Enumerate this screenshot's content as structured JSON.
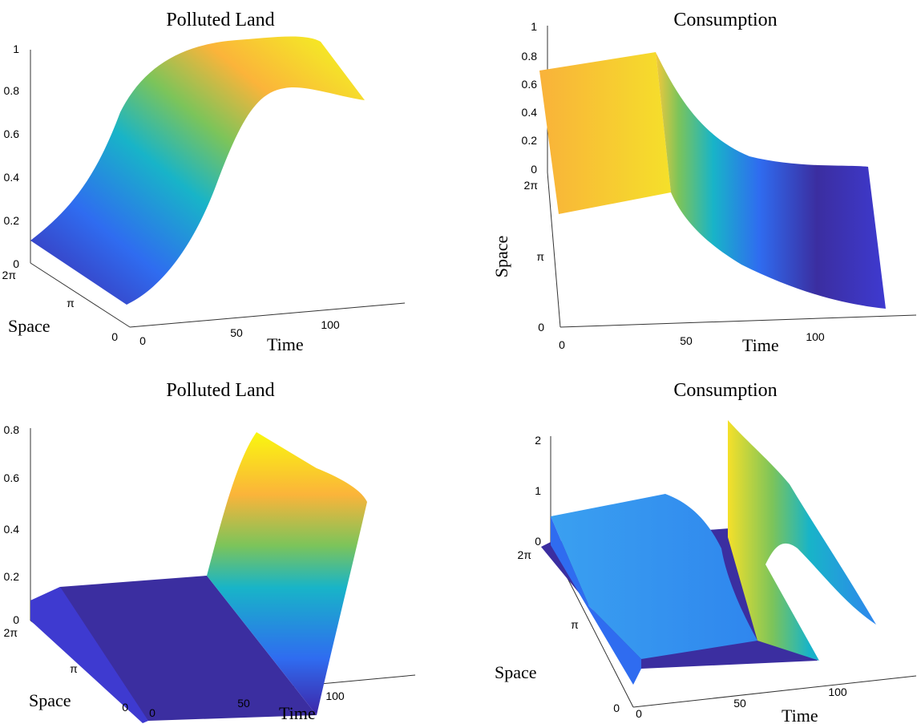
{
  "chart_data": [
    {
      "type": "surface",
      "title": "Polluted Land",
      "xlabel": "Time",
      "ylabel": "Space",
      "zlabel": "",
      "x_ticks": [
        "0",
        "50",
        "100"
      ],
      "y_ticks": [
        "0",
        "π",
        "2π"
      ],
      "z_ticks": [
        "0",
        "0.2",
        "0.4",
        "0.6",
        "0.8",
        "1"
      ],
      "xlim": [
        0,
        140
      ],
      "zlim": [
        0,
        1
      ],
      "profile": {
        "time": [
          0,
          20,
          40,
          60,
          80,
          100,
          120,
          140
        ],
        "value": [
          0.1,
          0.2,
          0.45,
          0.75,
          0.93,
          0.98,
          0.95,
          0.9
        ]
      },
      "colormap": "parula"
    },
    {
      "type": "surface",
      "title": "Consumption",
      "xlabel": "Time",
      "ylabel": "Space",
      "zlabel": "",
      "x_ticks": [
        "0",
        "50",
        "100"
      ],
      "y_ticks": [
        "0",
        "π",
        "2π"
      ],
      "z_ticks": [
        "0",
        "0.2",
        "0.4",
        "0.6",
        "0.8",
        "1"
      ],
      "xlim": [
        0,
        140
      ],
      "zlim": [
        0,
        1
      ],
      "profile": {
        "time": [
          0,
          45,
          60,
          80,
          100,
          140
        ],
        "value": [
          0.68,
          0.68,
          0.45,
          0.3,
          0.2,
          0.1
        ]
      },
      "colormap": "parula"
    },
    {
      "type": "surface",
      "title": "Polluted Land",
      "xlabel": "Time",
      "ylabel": "Space",
      "zlabel": "",
      "x_ticks": [
        "0",
        "50",
        "100"
      ],
      "y_ticks": [
        "0",
        "π",
        "2π"
      ],
      "z_ticks": [
        "0",
        "0.2",
        "0.4",
        "0.6",
        "0.8"
      ],
      "xlim": [
        0,
        140
      ],
      "zlim": [
        0,
        0.8
      ],
      "profile": {
        "time": [
          0,
          10,
          70,
          80,
          100,
          120,
          140
        ],
        "value": [
          0.1,
          0.0,
          0.0,
          0.05,
          0.4,
          0.75,
          0.7
        ]
      },
      "colormap": "parula"
    },
    {
      "type": "surface",
      "title": "Consumption",
      "xlabel": "Time",
      "ylabel": "Space",
      "zlabel": "",
      "x_ticks": [
        "0",
        "50",
        "100"
      ],
      "y_ticks": [
        "0",
        "π",
        "2π"
      ],
      "z_ticks": [
        "0",
        "1",
        "2"
      ],
      "xlim": [
        0,
        140
      ],
      "zlim": [
        0,
        2
      ],
      "profile": {
        "time": [
          0,
          10,
          50,
          60,
          70,
          90,
          100,
          140
        ],
        "value": [
          0.0,
          0.7,
          0.7,
          0.5,
          0.0,
          0.0,
          2.1,
          0.8
        ]
      },
      "colormap": "parula"
    }
  ]
}
